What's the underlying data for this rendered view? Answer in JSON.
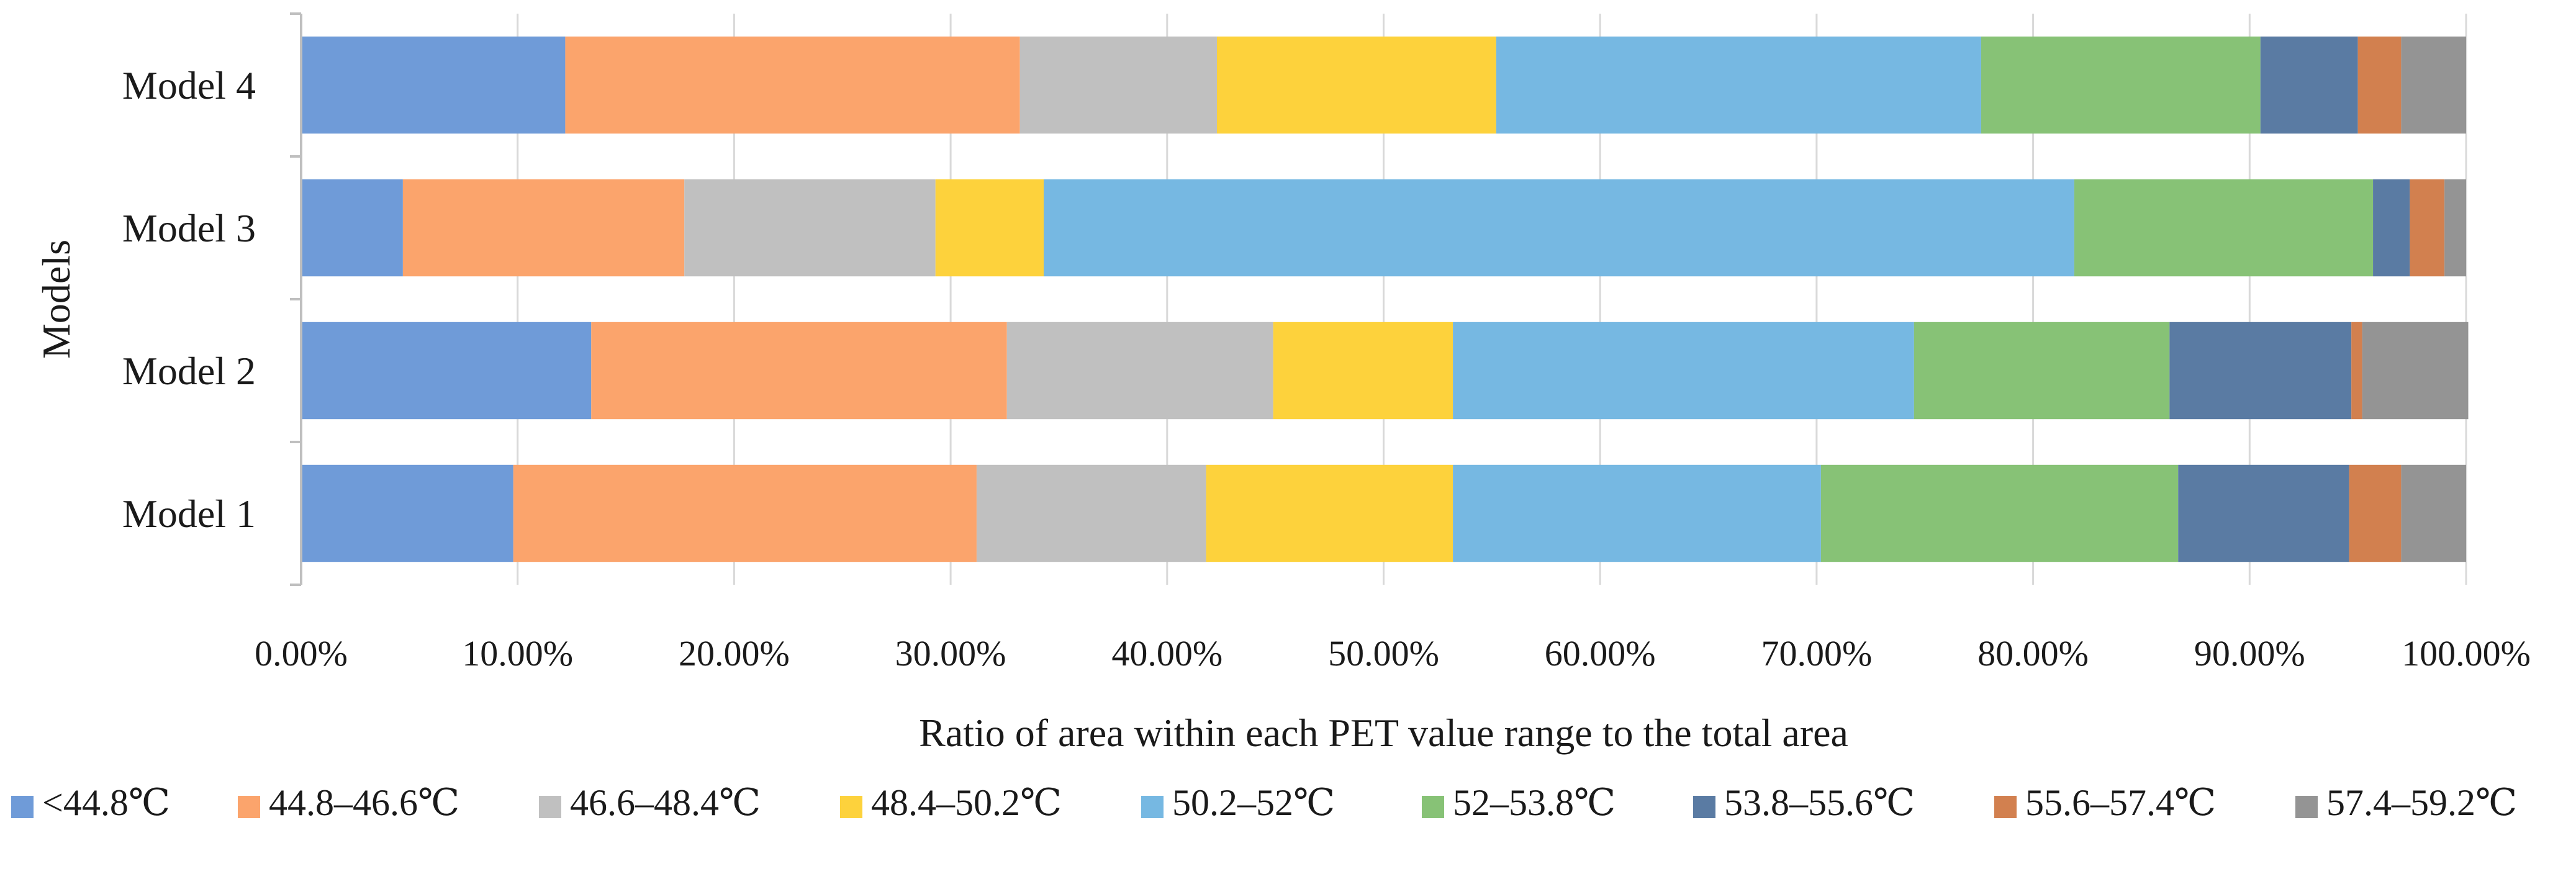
{
  "chart_data": {
    "type": "bar",
    "orientation": "horizontal",
    "stacked": true,
    "title": "",
    "xlabel": "Ratio of area within each PET value range to the total area",
    "ylabel": "Models",
    "xlim": [
      0,
      100
    ],
    "x_ticks": [
      "0.00%",
      "10.00%",
      "20.00%",
      "30.00%",
      "40.00%",
      "50.00%",
      "60.00%",
      "70.00%",
      "80.00%",
      "90.00%",
      "100.00%"
    ],
    "categories": [
      "Model 4",
      "Model 3",
      "Model 2",
      "Model 1"
    ],
    "series": [
      {
        "name": "<44.8℃",
        "color": "#6f9bd8",
        "values": [
          12.2,
          4.7,
          13.4,
          9.8
        ]
      },
      {
        "name": "44.8–46.6℃",
        "color": "#fba46c",
        "values": [
          21.0,
          13.0,
          19.2,
          21.4
        ]
      },
      {
        "name": "46.6–48.4℃",
        "color": "#c0c0c0",
        "values": [
          9.1,
          11.6,
          12.3,
          10.6
        ]
      },
      {
        "name": "48.4–50.2℃",
        "color": "#fdd23c",
        "values": [
          12.9,
          5.0,
          8.3,
          11.4
        ]
      },
      {
        "name": "50.2–52℃",
        "color": "#76b8e2",
        "values": [
          22.4,
          47.6,
          21.3,
          17.0
        ]
      },
      {
        "name": "52–53.8℃",
        "color": "#87c276",
        "values": [
          12.9,
          13.8,
          11.8,
          16.5
        ]
      },
      {
        "name": "53.8–55.6℃",
        "color": "#5a7ba3",
        "values": [
          4.5,
          1.7,
          8.4,
          7.9
        ]
      },
      {
        "name": "55.6–57.4℃",
        "color": "#d2804f",
        "values": [
          2.0,
          1.6,
          0.5,
          2.4
        ]
      },
      {
        "name": "57.4–59.2℃",
        "color": "#949494",
        "values": [
          3.0,
          1.0,
          4.9,
          3.0
        ]
      }
    ],
    "grid": true,
    "legend_position": "bottom"
  }
}
